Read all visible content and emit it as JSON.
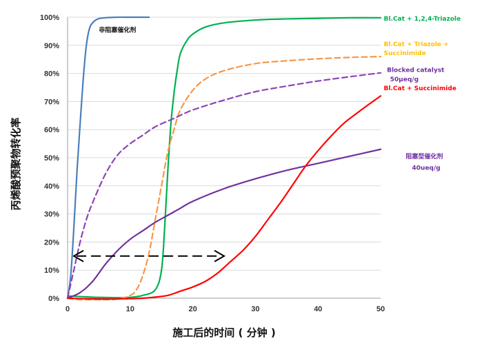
{
  "chart_data": {
    "type": "line",
    "title": "",
    "xlabel": "施工后的时间 ( 分钟 )",
    "ylabel": "丙烯酸预聚物转化率",
    "xlim": [
      0,
      50
    ],
    "ylim": [
      0,
      100
    ],
    "x_ticks": [
      "0",
      "10",
      "20",
      "30",
      "40",
      "50"
    ],
    "y_ticks": [
      "0%",
      "10%",
      "20%",
      "30%",
      "40%",
      "50%",
      "60%",
      "70%",
      "80%",
      "90%",
      "100%"
    ],
    "grid": true,
    "series": [
      {
        "name": "非阻塞催化剂",
        "color": "#4a7ebb",
        "dash": "solid",
        "x": [
          0,
          0.5,
          1,
          1.5,
          2,
          2.5,
          3,
          3.5,
          4,
          4.5,
          5,
          6,
          8,
          10,
          13
        ],
        "y": [
          0,
          8,
          25,
          45,
          62,
          78,
          90,
          96,
          98,
          99,
          99.5,
          99.8,
          100,
          100,
          100
        ]
      },
      {
        "name": "Bl.Cat + 1,2,4-Triazole",
        "color": "#00b050",
        "dash": "solid",
        "x": [
          0,
          2,
          5,
          8,
          10,
          12,
          14,
          15,
          15.5,
          16,
          16.5,
          17,
          17.5,
          18,
          19,
          20,
          22,
          25,
          30,
          35,
          40,
          45,
          50
        ],
        "y": [
          0.8,
          0.6,
          0.3,
          0.2,
          0.3,
          1,
          3,
          10,
          25,
          45,
          62,
          73,
          81,
          87,
          91.5,
          94,
          96.5,
          98,
          99,
          99.4,
          99.6,
          99.8,
          99.8
        ]
      },
      {
        "name": "Bl.Cat + Triazole + Succinimide",
        "color": "#f79646",
        "dash": "dashed",
        "x": [
          0,
          2,
          4,
          6,
          8,
          10,
          11,
          12,
          13,
          14,
          15,
          16,
          17,
          18,
          20,
          22,
          25,
          30,
          35,
          40,
          45,
          50
        ],
        "y": [
          0,
          -0.5,
          -0.5,
          -0.5,
          -0.3,
          1,
          3,
          8,
          16,
          28,
          40,
          52,
          60,
          67,
          74,
          78,
          81,
          83.5,
          84.5,
          85.2,
          85.7,
          86
        ]
      },
      {
        "name": "Blocked catalyst 50μeq/g",
        "color": "#8e44b8",
        "dash": "dashed",
        "x": [
          0,
          1,
          2,
          3,
          4,
          6,
          8,
          10,
          12,
          14,
          17,
          20,
          25,
          30,
          35,
          40,
          45,
          50
        ],
        "y": [
          0,
          10,
          20,
          28,
          34,
          44,
          51,
          55,
          58,
          61,
          64,
          67,
          70.5,
          73.5,
          75.5,
          77.3,
          78.8,
          80.2
        ]
      },
      {
        "name": "阻塞型催化剂 40ueq/g",
        "color": "#7030a0",
        "dash": "solid",
        "x": [
          0,
          2,
          4,
          6,
          8,
          10,
          12,
          14,
          16,
          18,
          20,
          25,
          30,
          35,
          40,
          45,
          50
        ],
        "y": [
          0,
          2,
          6,
          12,
          17,
          21,
          24,
          27,
          29.5,
          32,
          34.5,
          39,
          42.5,
          45.5,
          48,
          50.5,
          53
        ]
      },
      {
        "name": "Bl.Cat + Succinimide",
        "color": "#ff0000",
        "dash": "solid",
        "x": [
          0,
          3,
          6,
          9,
          12,
          14,
          16,
          18,
          20,
          22,
          24,
          26,
          28,
          30,
          32,
          34,
          36,
          38,
          40,
          42,
          44,
          46,
          48,
          50
        ],
        "y": [
          0,
          -0.2,
          -0.3,
          -0.2,
          0,
          0.4,
          1,
          2.5,
          4,
          6,
          9,
          13,
          17,
          22,
          28,
          34,
          40.5,
          47,
          52.5,
          57.5,
          62,
          65.5,
          68.8,
          72
        ]
      }
    ],
    "legend_labels": [
      {
        "text": "非阻塞催化剂",
        "color": "#111111",
        "x": 5,
        "y": 95.5
      },
      {
        "text": "Bl.Cat + 1,2,4-Triazole",
        "color": "#00b050",
        "x": 50.5,
        "y": 99.5
      },
      {
        "text": "Bl.Cat + Triazole +",
        "color": "#ffc000",
        "x": 50.5,
        "y": 90.5
      },
      {
        "text": "Succinimide",
        "color": "#ffc000",
        "x": 50.5,
        "y": 87.3
      },
      {
        "text": "Blocked catalyst",
        "color": "#7030a0",
        "x": 51,
        "y": 81.3
      },
      {
        "text": "50μeq/g",
        "color": "#7030a0",
        "x": 51.5,
        "y": 78
      },
      {
        "text": "Bl.Cat + Succinimide",
        "color": "#ff0000",
        "x": 50.5,
        "y": 74.7
      },
      {
        "text": "阻塞型催化剂",
        "color": "#7030a0",
        "x": 54,
        "y": 50.5
      },
      {
        "text": "40ueq/g",
        "color": "#7030a0",
        "x": 55,
        "y": 46.5
      }
    ],
    "arrow": {
      "x_from": 1,
      "x_to": 25,
      "y": 15,
      "color": "#000000",
      "style": "dashed double-headed"
    }
  }
}
